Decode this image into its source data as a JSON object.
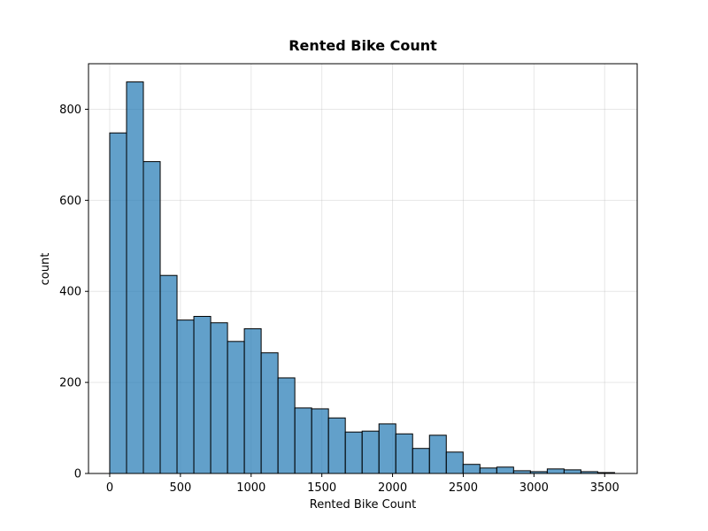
{
  "chart_data": {
    "type": "bar",
    "subtype": "histogram",
    "title": "Rented Bike Count",
    "xlabel": "Rented Bike Count",
    "ylabel": "count",
    "xlim": [
      -150,
      3730
    ],
    "ylim": [
      0,
      900
    ],
    "xticks": [
      0,
      500,
      1000,
      1500,
      2000,
      2500,
      3000,
      3500
    ],
    "yticks": [
      0,
      200,
      400,
      600,
      800
    ],
    "grid": true,
    "bar_color": "#1f77b4",
    "bar_alpha": 0.7,
    "edge_color": "#000000",
    "bin_start": 0,
    "bin_width": 119,
    "values": [
      748,
      860,
      685,
      435,
      337,
      345,
      331,
      290,
      318,
      265,
      210,
      144,
      142,
      122,
      91,
      93,
      109,
      87,
      55,
      84,
      47,
      20,
      12,
      14,
      6,
      4,
      10,
      8,
      4,
      2
    ]
  }
}
